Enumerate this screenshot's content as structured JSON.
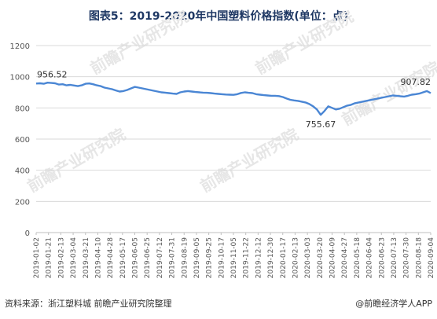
{
  "title": "图表5：2019-2020年中国塑料价格指数(单位：点)",
  "footer": {
    "source": "资料来源：浙江塑料城 前瞻产业研究院整理",
    "brand": "@前瞻经济学人APP"
  },
  "watermark": "前瞻产业研究院",
  "colors": {
    "line": "#4a86d4",
    "title": "#1f3864",
    "grid": "#d9d9d9"
  },
  "chart_data": {
    "type": "line",
    "title": "图表5：2019-2020年中国塑料价格指数(单位：点)",
    "ylim": [
      0,
      1200
    ],
    "yticks": [
      0,
      200,
      400,
      600,
      800,
      1000,
      1200
    ],
    "grid": true,
    "x_tick_labels": [
      "2019-01-02",
      "2019-01-21",
      "2019-02-13",
      "2019-03-04",
      "2019-03-21",
      "2019-04-10",
      "2019-04-28",
      "2019-05-17",
      "2019-06-05",
      "2019-06-25",
      "2019-07-12",
      "2019-07-31",
      "2019-08-19",
      "2019-09-05",
      "2019-09-25",
      "2019-10-17",
      "2019-11-05",
      "2019-11-22",
      "2019-12-12",
      "2019-12-30",
      "2020-01-17",
      "2020-02-13",
      "2020-03-03",
      "2020-03-20",
      "2020-04-09",
      "2020-04-27",
      "2020-05-18",
      "2020-06-04",
      "2020-06-23",
      "2020-07-13",
      "2020-07-30",
      "2020-08-18",
      "2020-09-04"
    ],
    "series": [
      {
        "values": [
          956.52,
          958,
          955,
          962,
          960,
          958,
          950,
          952,
          945,
          948,
          944,
          940,
          945,
          955,
          957,
          952,
          945,
          940,
          930,
          925,
          920,
          912,
          905,
          908,
          915,
          925,
          935,
          930,
          925,
          920,
          915,
          910,
          905,
          900,
          898,
          895,
          892,
          890,
          900,
          905,
          908,
          905,
          902,
          900,
          898,
          897,
          895,
          892,
          890,
          888,
          886,
          885,
          884,
          888,
          896,
          900,
          897,
          895,
          888,
          885,
          882,
          880,
          878,
          878,
          876,
          870,
          860,
          852,
          848,
          845,
          840,
          835,
          825,
          810,
          790,
          755.67,
          780,
          810,
          800,
          790,
          795,
          805,
          815,
          820,
          830,
          835,
          840,
          845,
          850,
          855,
          860,
          865,
          870,
          875,
          880,
          878,
          875,
          873,
          878,
          885,
          888,
          892,
          900,
          907.82,
          895
        ]
      }
    ],
    "annotations": [
      {
        "label": "956.52",
        "index": 0,
        "value": 956.52
      },
      {
        "label": "755.67",
        "index": 75,
        "value": 755.67
      },
      {
        "label": "907.82",
        "index": 103,
        "value": 907.82
      }
    ]
  }
}
